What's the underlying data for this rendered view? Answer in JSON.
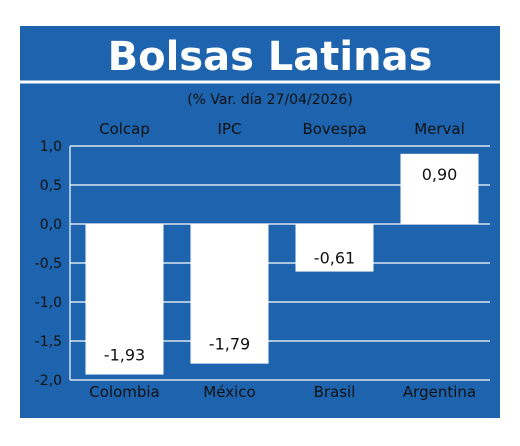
{
  "colors": {
    "background": "#1d63ad",
    "bars": "#ffffff",
    "grid": "#ffffff",
    "text_light": "#ffffff",
    "text_dark": "#111111",
    "outer": "#ffffff"
  },
  "chart_data": {
    "type": "bar",
    "title": "Bolsas Latinas",
    "subtitle": "(% Var. día 27/04/2026)",
    "top_labels": [
      "Colcap",
      "IPC",
      "Bovespa",
      "Merval"
    ],
    "categories": [
      "Colombia",
      "México",
      "Brasil",
      "Argentina"
    ],
    "values": [
      -1.93,
      -1.79,
      -0.61,
      0.9
    ],
    "value_labels": [
      "-1,93",
      "-1,79",
      "-0,61",
      "0,90"
    ],
    "yticks": [
      1.0,
      0.5,
      0.0,
      -0.5,
      -1.0,
      -1.5,
      -2.0
    ],
    "ytick_labels": [
      "1,0",
      "0,5",
      "0,0",
      "-0,5",
      "-1,0",
      "-1,5",
      "-2,0"
    ],
    "ylim": [
      -2.0,
      1.0
    ],
    "grid": true,
    "xlabel": "",
    "ylabel": ""
  }
}
